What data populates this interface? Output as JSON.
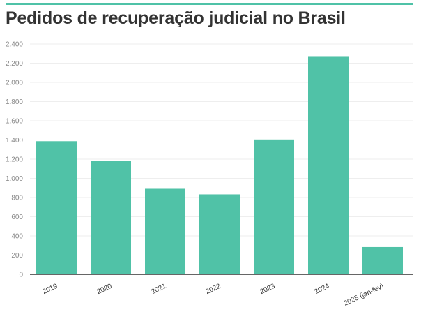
{
  "title": "Pedidos de recuperação judicial no Brasil",
  "colors": {
    "accent": "#4fc2a7",
    "bar": "#50c2a7",
    "axis": "#333333",
    "grid": "#eeeeee",
    "tick": "#888888"
  },
  "chart_data": {
    "type": "bar",
    "title": "Pedidos de recuperação judicial no Brasil",
    "xlabel": "",
    "ylabel": "",
    "categories": [
      "2019",
      "2020",
      "2021",
      "2022",
      "2023",
      "2024",
      "2025 (jan-fev)"
    ],
    "values": [
      1387,
      1179,
      891,
      833,
      1405,
      2273,
      284
    ],
    "ylim": [
      0,
      2400
    ],
    "yticks": [
      0,
      200,
      400,
      600,
      800,
      1000,
      1200,
      1400,
      1600,
      1800,
      2000,
      2200,
      2400
    ],
    "ytick_labels": [
      "0",
      "200",
      "400",
      "600",
      "800",
      "1.000",
      "1.200",
      "1.400",
      "1.600",
      "1.800",
      "2.000",
      "2.200",
      "2.400"
    ],
    "grid": true,
    "legend": "none"
  }
}
